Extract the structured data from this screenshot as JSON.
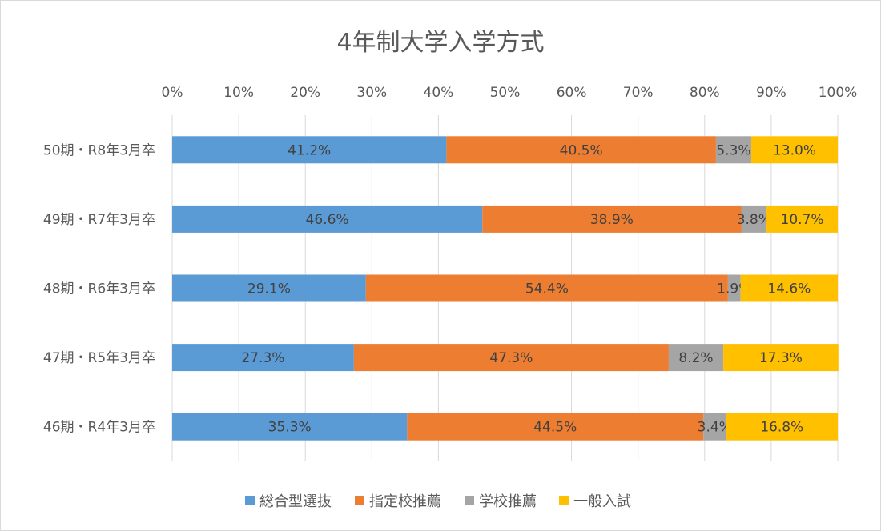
{
  "chart_data": {
    "type": "bar",
    "orientation": "horizontal",
    "stacked": "percent",
    "title": "4年制大学入学方式",
    "xlabel": "",
    "ylabel": "",
    "xlim": [
      0,
      100
    ],
    "x_ticks": [
      "0%",
      "10%",
      "20%",
      "30%",
      "40%",
      "50%",
      "60%",
      "70%",
      "80%",
      "90%",
      "100%"
    ],
    "grid": true,
    "legend_position": "bottom",
    "categories": [
      "50期・R8年3月卒",
      "49期・R7年3月卒",
      "48期・R6年3月卒",
      "47期・R5年3月卒",
      "46期・R4年3月卒"
    ],
    "series": [
      {
        "name": "総合型選抜",
        "color": "#5B9BD5",
        "values": [
          41.2,
          46.6,
          29.1,
          27.3,
          35.3
        ],
        "labels": [
          "41.2%",
          "46.6%",
          "29.1%",
          "27.3%",
          "35.3%"
        ]
      },
      {
        "name": "指定校推薦",
        "color": "#ED7D31",
        "values": [
          40.5,
          38.9,
          54.4,
          47.3,
          44.5
        ],
        "labels": [
          "40.5%",
          "38.9%",
          "54.4%",
          "47.3%",
          "44.5%"
        ]
      },
      {
        "name": "学校推薦",
        "color": "#A5A5A5",
        "values": [
          5.3,
          3.8,
          1.9,
          8.2,
          3.4
        ],
        "labels": [
          "5.3%",
          "3.8%",
          "1.9%",
          "8.2%",
          "3.4%"
        ]
      },
      {
        "name": "一般入試",
        "color": "#FFC000",
        "values": [
          13.0,
          10.7,
          14.6,
          17.3,
          16.8
        ],
        "labels": [
          "13.0%",
          "10.7%",
          "14.6%",
          "17.3%",
          "16.8%"
        ]
      }
    ]
  }
}
